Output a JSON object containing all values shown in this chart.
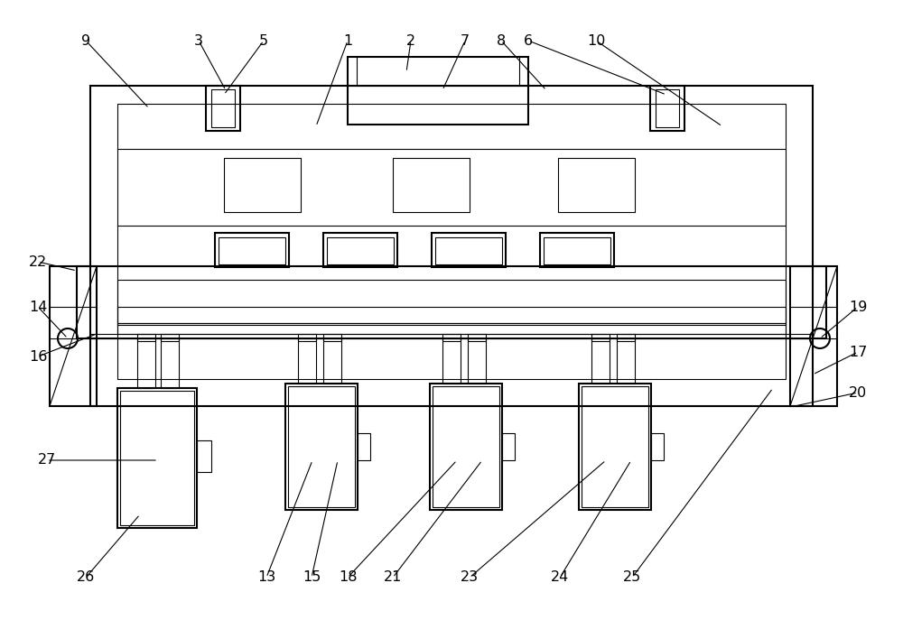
{
  "bg_color": "#ffffff",
  "lc": "#000000",
  "lw": 1.5,
  "tlw": 0.8,
  "gray": "#aaaaaa",
  "light_gray": "#d0d0d0"
}
